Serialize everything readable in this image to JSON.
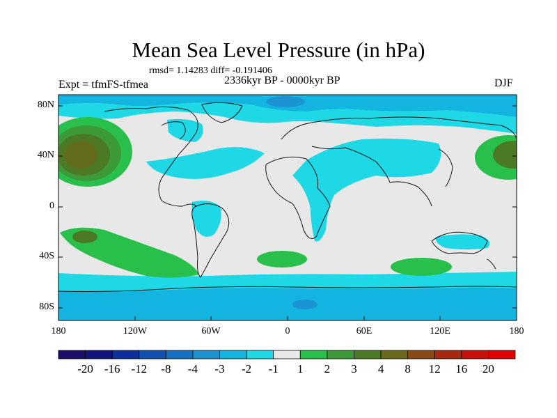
{
  "title": "Mean Sea Level Pressure (in hPa)",
  "stats": "rmsd= 1.14283 diff= -0.191406",
  "expt": "Expt = tfmFS-tfmea",
  "period": "2336kyr BP - 0000kyr BP",
  "season": "DJF",
  "lat_labels": [
    "80N",
    "40N",
    "0",
    "40S",
    "80S"
  ],
  "lon_labels": [
    "180",
    "120W",
    "60W",
    "0",
    "60E",
    "120E",
    "180"
  ],
  "legend": {
    "labels": [
      "-20",
      "-16",
      "-12",
      "-8",
      "-4",
      "-3",
      "-2",
      "-1",
      "1",
      "2",
      "3",
      "4",
      "8",
      "12",
      "16",
      "20"
    ],
    "colors": [
      "#1b0f6b",
      "#12137f",
      "#0d2f9e",
      "#1050b3",
      "#1471c4",
      "#1c94d4",
      "#14b4e0",
      "#1ed8e6",
      "#e8e8e8",
      "#28c04a",
      "#3c9a38",
      "#4c7a24",
      "#6a6a1a",
      "#8a4a14",
      "#a8280e",
      "#c8100a",
      "#e00000"
    ]
  }
}
